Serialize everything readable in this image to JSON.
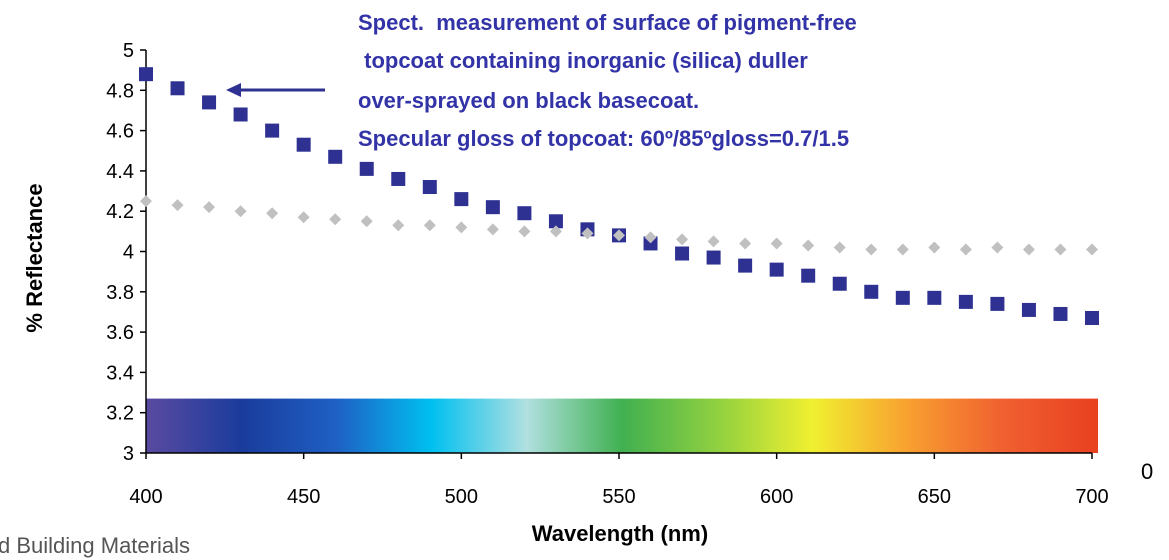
{
  "chart_data": {
    "type": "scatter",
    "title": "",
    "xlabel": "Wavelength (nm)",
    "ylabel": "% Reflectance",
    "xlim": [
      400,
      700
    ],
    "ylim": [
      3,
      5
    ],
    "x_ticks": [
      "400",
      "450",
      "500",
      "550",
      "600",
      "650",
      "700"
    ],
    "y_ticks": [
      "3",
      "3.2",
      "3.4",
      "3.6",
      "3.8",
      "4",
      "4.2",
      "4.4",
      "4.6",
      "4.8",
      "5"
    ],
    "grid": false,
    "legend": "none",
    "annotation_lines": [
      "Spect.  measurement of surface of pigment-free",
      " topcoat containing inorganic (silica) duller",
      "over-sprayed on black basecoat.",
      "Specular gloss of topcoat: 60º/85ºgloss=0.7/1.5"
    ],
    "annotation_color": "#3333a8",
    "right_edge_label": "0",
    "footer_fragment": "d Building Materials",
    "series": [
      {
        "marker": "square",
        "color": "#2e3192",
        "x": [
          400,
          410,
          420,
          430,
          440,
          450,
          460,
          470,
          480,
          490,
          500,
          510,
          520,
          530,
          540,
          550,
          560,
          570,
          580,
          590,
          600,
          610,
          620,
          630,
          640,
          650,
          660,
          670,
          680,
          690,
          700
        ],
        "y": [
          4.88,
          4.81,
          4.74,
          4.68,
          4.6,
          4.53,
          4.47,
          4.41,
          4.36,
          4.32,
          4.26,
          4.22,
          4.19,
          4.15,
          4.11,
          4.08,
          4.04,
          3.99,
          3.97,
          3.93,
          3.91,
          3.88,
          3.84,
          3.8,
          3.77,
          3.77,
          3.75,
          3.74,
          3.71,
          3.69,
          3.67
        ]
      },
      {
        "marker": "diamond",
        "color": "#c0c0c0",
        "x": [
          400,
          410,
          420,
          430,
          440,
          450,
          460,
          470,
          480,
          490,
          500,
          510,
          520,
          530,
          540,
          550,
          560,
          570,
          580,
          590,
          600,
          610,
          620,
          630,
          640,
          650,
          660,
          670,
          680,
          690,
          700
        ],
        "y": [
          4.25,
          4.23,
          4.22,
          4.2,
          4.19,
          4.17,
          4.16,
          4.15,
          4.13,
          4.13,
          4.12,
          4.11,
          4.1,
          4.1,
          4.09,
          4.08,
          4.07,
          4.06,
          4.05,
          4.04,
          4.04,
          4.03,
          4.02,
          4.01,
          4.01,
          4.02,
          4.01,
          4.02,
          4.01,
          4.01,
          4.01
        ]
      }
    ],
    "spectrum_band": {
      "y_range": [
        3,
        3.27
      ],
      "colors": [
        "#5a4aa0",
        "#1a3c9c",
        "#1e60c4",
        "#00c0f0",
        "#b0e0e0",
        "#40b050",
        "#90d040",
        "#f0f030",
        "#f8a030",
        "#f06030",
        "#e84020"
      ]
    }
  }
}
